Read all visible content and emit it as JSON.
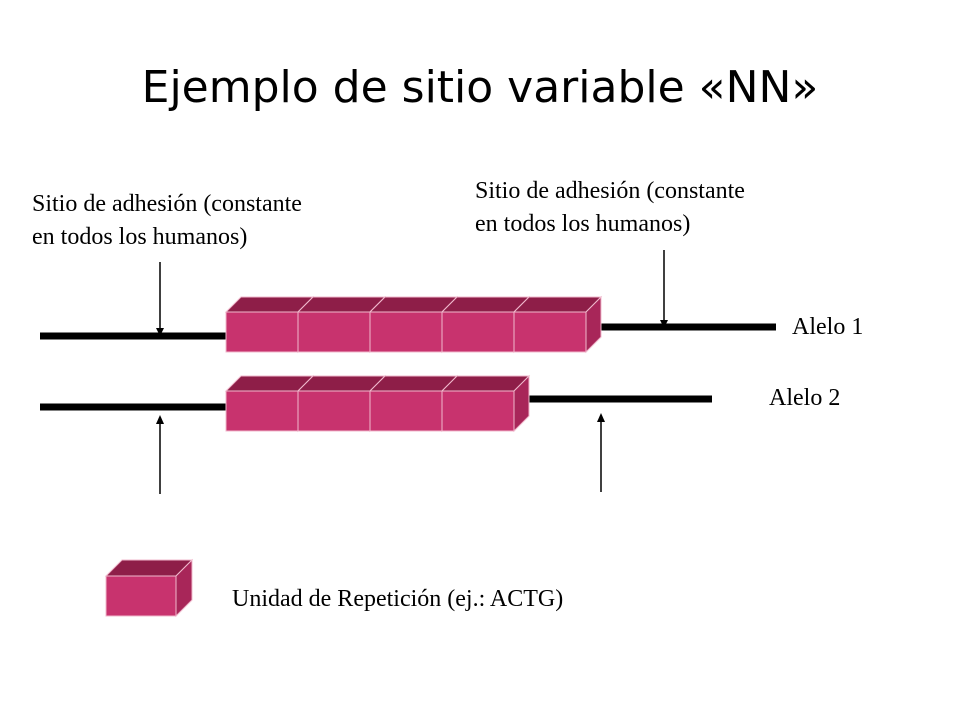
{
  "slide": {
    "title": "Ejemplo de sitio variable «NN»"
  },
  "labels": {
    "left_site_line1": "Sitio de adhesión (constante",
    "left_site_line2": "en todos los humanos)",
    "right_site_line1": "Sitio de adhesión (constante",
    "right_site_line2": "en todos los humanos)",
    "allele1": "Alelo 1",
    "allele2": "Alelo 2",
    "legend": "Unidad de Repetición (ej.: ACTG)"
  },
  "alleles": [
    {
      "name": "Alelo 1",
      "repeat_units": 5
    },
    {
      "name": "Alelo 2",
      "repeat_units": 4
    }
  ],
  "colors": {
    "block_front": "#c8336e",
    "block_top": "#8e1e48",
    "block_side": "#a82659",
    "block_edge": "#f0b8cc",
    "strand": "#000000"
  }
}
